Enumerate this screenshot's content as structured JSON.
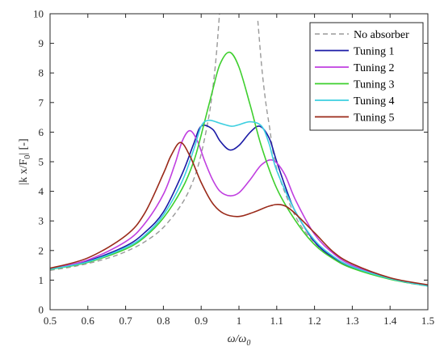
{
  "chart_data": {
    "type": "line",
    "title": "",
    "xlabel": "ω/ω",
    "xlabel_sub": "0",
    "ylabel": "|k x/F",
    "ylabel_sub": "0",
    "ylabel_suffix": "| [-]",
    "xlim": [
      0.5,
      1.5
    ],
    "ylim": [
      0,
      10
    ],
    "xticks": [
      0.5,
      0.6,
      0.7,
      0.8,
      0.9,
      1.0,
      1.1,
      1.2,
      1.3,
      1.4,
      1.5
    ],
    "xtick_labels": [
      "0.5",
      "0.6",
      "0.7",
      "0.8",
      "0.9",
      "1",
      "1.1",
      "1.2",
      "1.3",
      "1.4",
      "1.5"
    ],
    "yticks": [
      0,
      1,
      2,
      3,
      4,
      5,
      6,
      7,
      8,
      9,
      10
    ],
    "ytick_labels": [
      "0",
      "1",
      "2",
      "3",
      "4",
      "5",
      "6",
      "7",
      "8",
      "9",
      "10"
    ],
    "grid": false,
    "legend_position": "top-right",
    "series": [
      {
        "name": "No absorber",
        "color": "#999999",
        "dash": true,
        "x": [
          0.5,
          0.55,
          0.6,
          0.65,
          0.7,
          0.75,
          0.8,
          0.85,
          0.88,
          0.9,
          0.92,
          0.93,
          0.94,
          0.95,
          1.05,
          1.06,
          1.07,
          1.08,
          1.1,
          1.15,
          1.2,
          1.25,
          1.3,
          1.35,
          1.4,
          1.45,
          1.5
        ],
        "y": [
          1.33,
          1.43,
          1.56,
          1.73,
          1.96,
          2.29,
          2.78,
          3.6,
          4.4,
          5.26,
          6.5,
          7.4,
          8.59,
          10.26,
          9.76,
          8.24,
          7.1,
          6.25,
          4.76,
          3.14,
          2.27,
          1.78,
          1.45,
          1.21,
          1.04,
          0.9,
          0.8
        ]
      },
      {
        "name": "Tuning 1",
        "color": "#1a1aa6",
        "dash": false,
        "x": [
          0.5,
          0.6,
          0.7,
          0.75,
          0.8,
          0.85,
          0.88,
          0.9,
          0.93,
          0.95,
          0.975,
          1.0,
          1.03,
          1.055,
          1.08,
          1.1,
          1.13,
          1.15,
          1.2,
          1.25,
          1.3,
          1.4,
          1.5
        ],
        "y": [
          1.38,
          1.65,
          2.15,
          2.6,
          3.3,
          4.6,
          5.6,
          6.2,
          6.1,
          5.7,
          5.4,
          5.55,
          6.0,
          6.2,
          5.8,
          5.0,
          3.9,
          3.3,
          2.3,
          1.75,
          1.42,
          1.05,
          0.82
        ]
      },
      {
        "name": "Tuning 2",
        "color": "#c03fe0",
        "dash": false,
        "x": [
          0.5,
          0.6,
          0.7,
          0.75,
          0.8,
          0.83,
          0.85,
          0.87,
          0.89,
          0.91,
          0.93,
          0.95,
          0.975,
          1.0,
          1.03,
          1.06,
          1.09,
          1.12,
          1.15,
          1.2,
          1.25,
          1.3,
          1.4,
          1.5
        ],
        "y": [
          1.38,
          1.68,
          2.3,
          2.9,
          3.9,
          4.9,
          5.7,
          6.05,
          5.7,
          5.0,
          4.4,
          4.0,
          3.85,
          3.95,
          4.4,
          4.9,
          5.05,
          4.6,
          3.7,
          2.55,
          1.9,
          1.5,
          1.06,
          0.83
        ]
      },
      {
        "name": "Tuning 3",
        "color": "#3ecf2e",
        "dash": false,
        "x": [
          0.5,
          0.6,
          0.7,
          0.75,
          0.8,
          0.85,
          0.88,
          0.9,
          0.93,
          0.95,
          0.975,
          1.0,
          1.03,
          1.06,
          1.1,
          1.15,
          1.2,
          1.25,
          1.3,
          1.4,
          1.5
        ],
        "y": [
          1.36,
          1.6,
          2.05,
          2.45,
          3.1,
          4.1,
          5.0,
          5.9,
          7.4,
          8.3,
          8.7,
          8.2,
          6.9,
          5.5,
          4.1,
          3.0,
          2.2,
          1.72,
          1.4,
          1.03,
          0.8
        ]
      },
      {
        "name": "Tuning 4",
        "color": "#3ccfe0",
        "dash": false,
        "x": [
          0.5,
          0.6,
          0.7,
          0.75,
          0.8,
          0.85,
          0.88,
          0.9,
          0.92,
          0.95,
          0.98,
          1.0,
          1.03,
          1.06,
          1.08,
          1.1,
          1.15,
          1.2,
          1.25,
          1.3,
          1.4,
          1.5
        ],
        "y": [
          1.37,
          1.62,
          2.1,
          2.5,
          3.2,
          4.35,
          5.4,
          6.2,
          6.4,
          6.3,
          6.2,
          6.25,
          6.35,
          6.2,
          5.6,
          4.7,
          3.3,
          2.35,
          1.8,
          1.45,
          1.05,
          0.8
        ]
      },
      {
        "name": "Tuning 5",
        "color": "#9a2a1a",
        "dash": false,
        "x": [
          0.5,
          0.6,
          0.7,
          0.75,
          0.8,
          0.82,
          0.845,
          0.87,
          0.9,
          0.93,
          0.96,
          1.0,
          1.04,
          1.08,
          1.11,
          1.14,
          1.2,
          1.25,
          1.3,
          1.4,
          1.5
        ],
        "y": [
          1.4,
          1.75,
          2.5,
          3.25,
          4.6,
          5.2,
          5.65,
          5.2,
          4.3,
          3.6,
          3.25,
          3.15,
          3.3,
          3.5,
          3.55,
          3.35,
          2.6,
          1.95,
          1.55,
          1.08,
          0.84
        ]
      }
    ]
  }
}
